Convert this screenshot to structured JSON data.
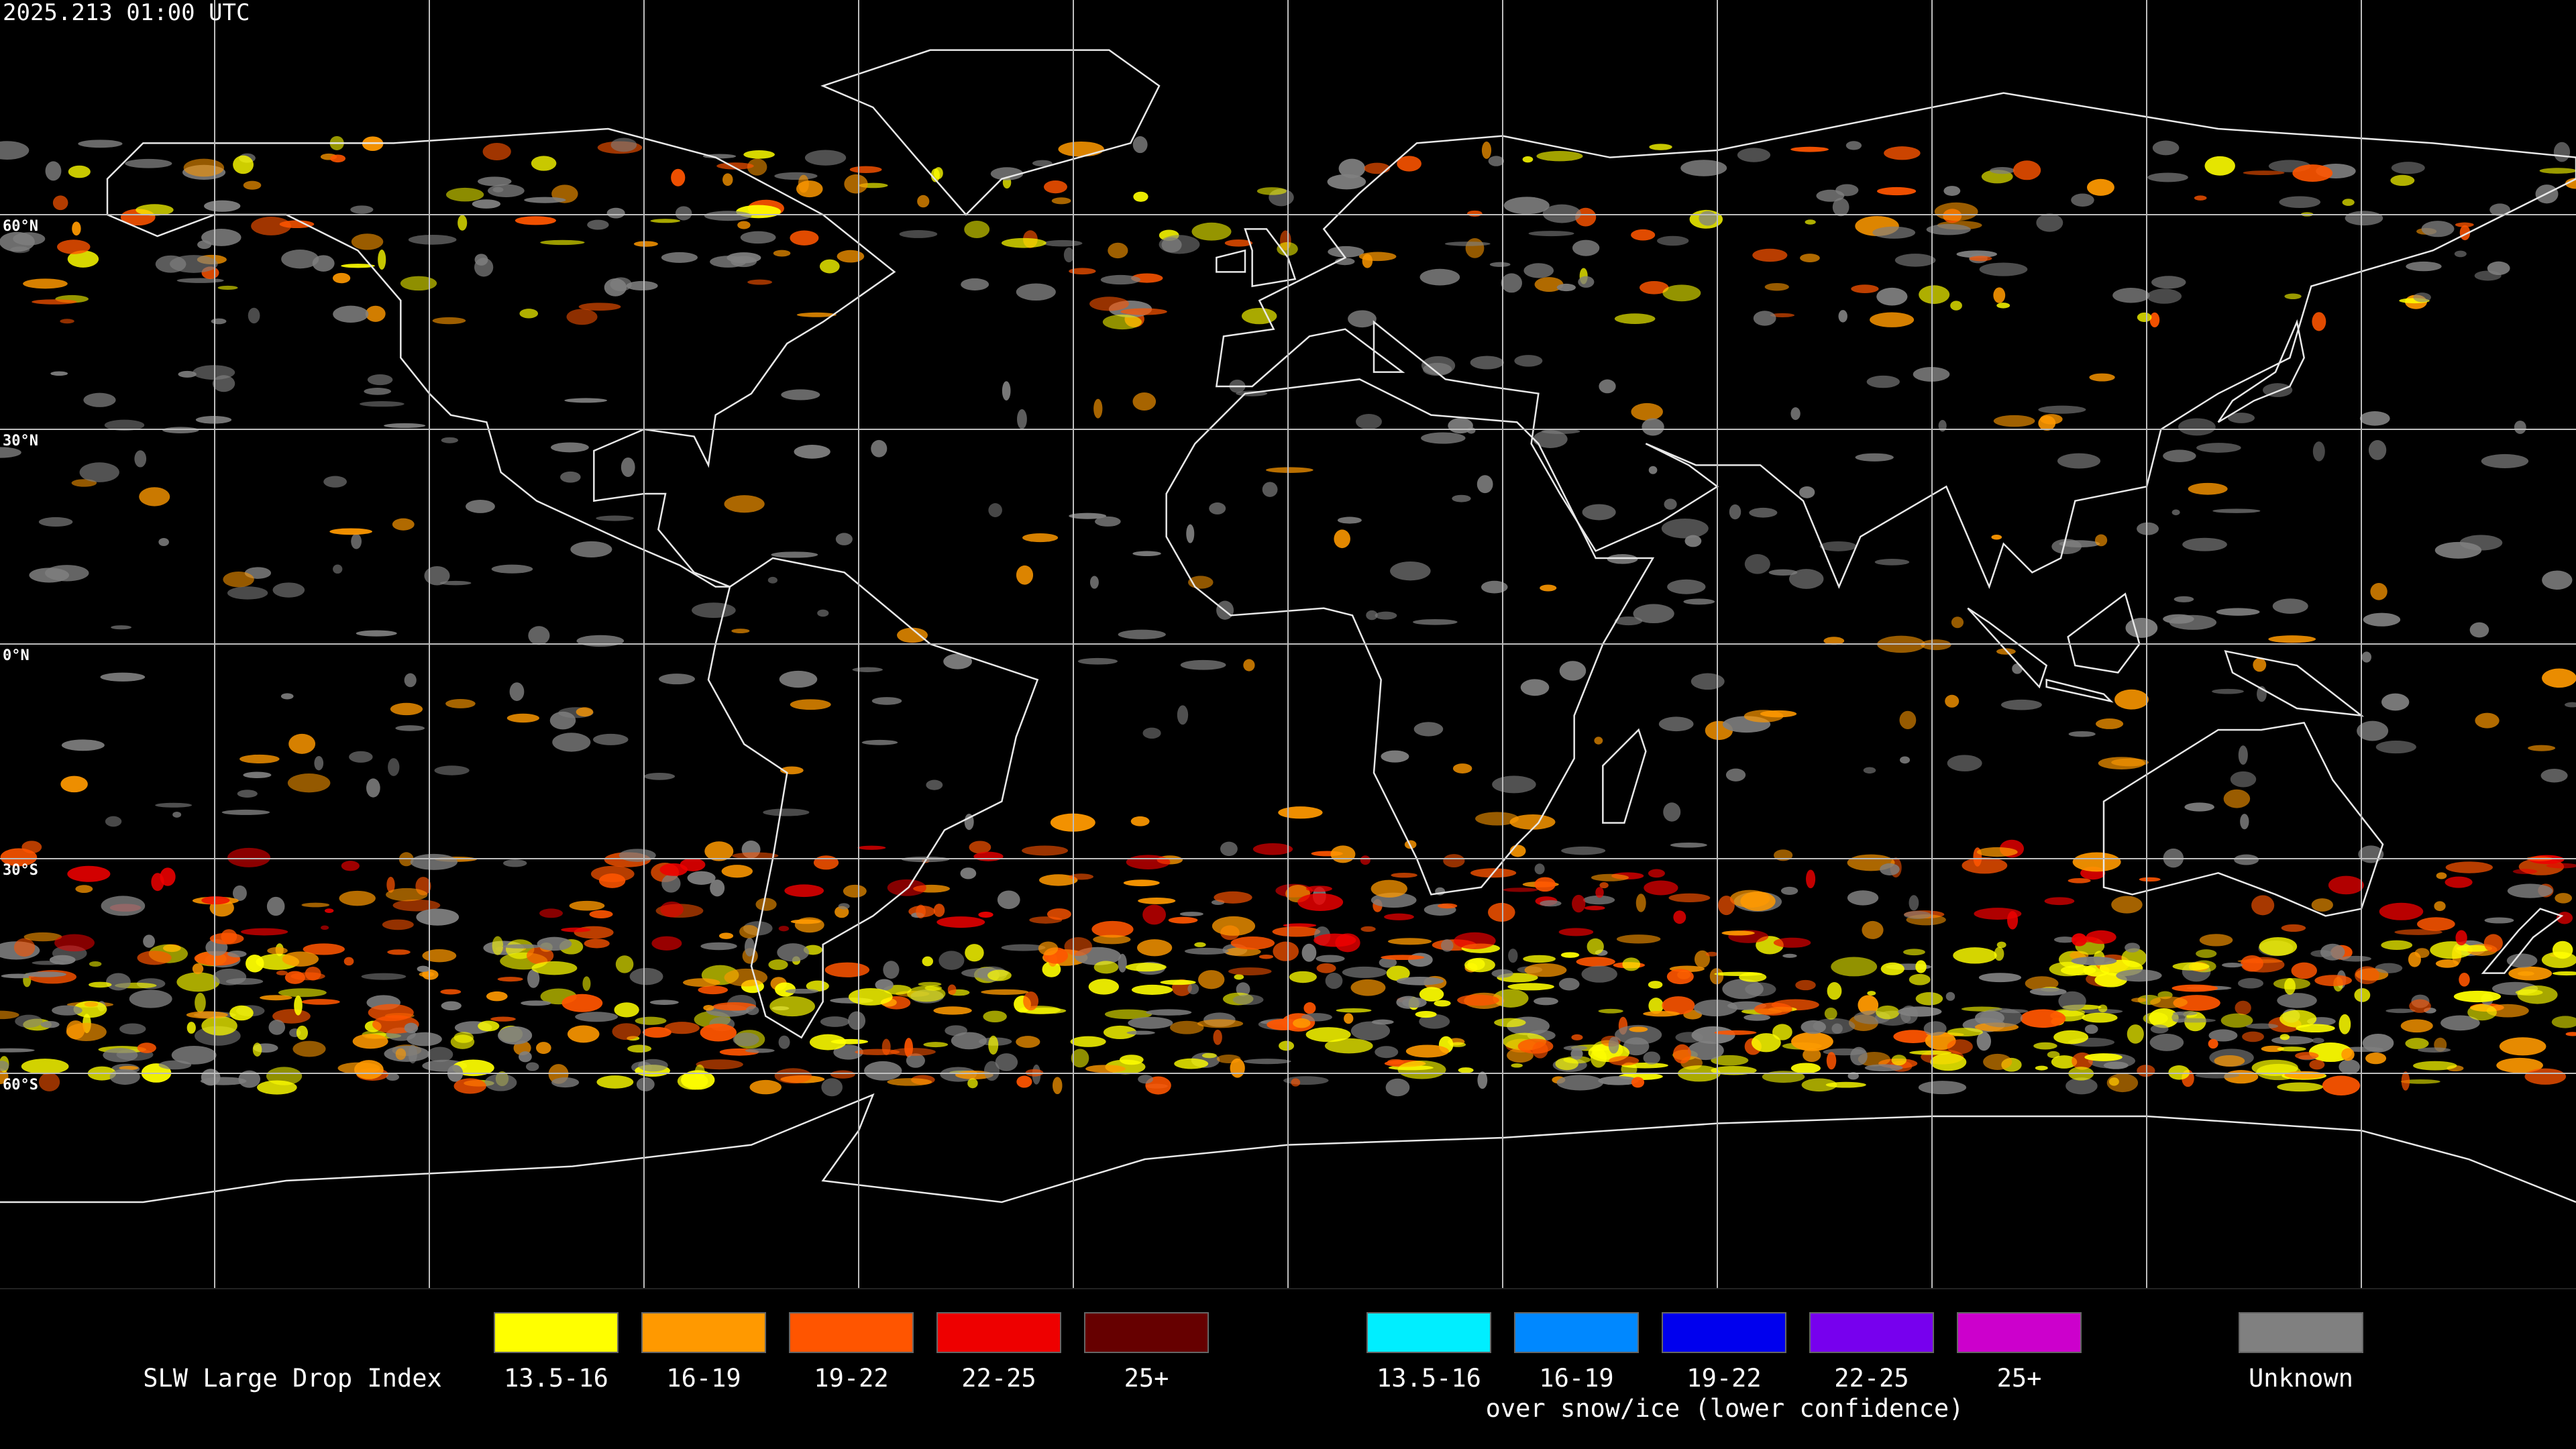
{
  "timestamp": "2025.213 01:00 UTC",
  "latitude_labels": [
    "60°N",
    "30°N",
    "0°N",
    "30°S",
    "60°S"
  ],
  "legend": {
    "title": "SLW Large Drop Index",
    "groups": [
      {
        "items": [
          {
            "label": "13.5-16",
            "color": "#ffff00"
          },
          {
            "label": "16-19",
            "color": "#ff9900"
          },
          {
            "label": "19-22",
            "color": "#ff5500"
          },
          {
            "label": "22-25",
            "color": "#ee0000"
          },
          {
            "label": "25+",
            "color": "#660000"
          }
        ]
      },
      {
        "items": [
          {
            "label": "13.5-16",
            "color": "#00eeff"
          },
          {
            "label": "16-19",
            "color": "#0088ff"
          },
          {
            "label": "19-22",
            "color": "#0000ee"
          },
          {
            "label": "22-25",
            "color": "#7700ee"
          },
          {
            "label": "25+",
            "color": "#cc00cc"
          }
        ],
        "note": "over snow/ice (lower confidence)"
      }
    ],
    "unknown": {
      "label": "Unknown",
      "color": "#808080"
    }
  }
}
